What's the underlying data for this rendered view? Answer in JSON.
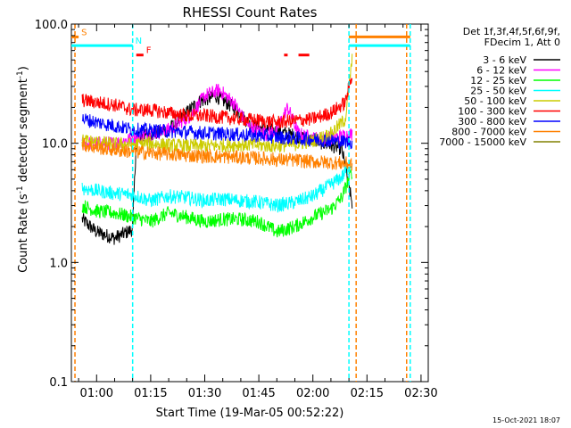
{
  "chart_data": {
    "type": "line",
    "title": "RHESSI Count Rates",
    "xlabel": "Start Time (19-Mar-05 00:52:22)",
    "ylabel_main": "Count Rate (s",
    "ylabel_sup1": "-1",
    "ylabel_mid": " detector segment",
    "ylabel_sup2": "-1",
    "ylabel_end": ")",
    "y_scale": "log",
    "ylim": [
      0.1,
      100
    ],
    "xlim": [
      "00:53",
      "02:32"
    ],
    "y_ticks": [
      {
        "value": 0.1,
        "label": "0.1"
      },
      {
        "value": 1,
        "label": "1.0"
      },
      {
        "value": 10,
        "label": "10.0"
      },
      {
        "value": 100,
        "label": "100.0"
      }
    ],
    "x_ticks": [
      {
        "value": "01:00",
        "label": "01:00"
      },
      {
        "value": "01:15",
        "label": "01:15"
      },
      {
        "value": "01:30",
        "label": "01:30"
      },
      {
        "value": "01:45",
        "label": "01:45"
      },
      {
        "value": "02:00",
        "label": "02:00"
      },
      {
        "value": "02:15",
        "label": "02:15"
      },
      {
        "value": "02:30",
        "label": "02:30"
      }
    ],
    "legend_header": [
      "Det 1f,3f,4f,5f,6f,9f,",
      "FDecim 1, Att 0"
    ],
    "legend_position": "right",
    "series": [
      {
        "name": "3 - 6 keV",
        "color": "#000000",
        "points": [
          [
            "00:56",
            2.3
          ],
          [
            "01:00",
            1.8
          ],
          [
            "01:05",
            1.6
          ],
          [
            "01:10",
            1.9
          ],
          [
            "01:11",
            11
          ],
          [
            "01:20",
            13
          ],
          [
            "01:28",
            22
          ],
          [
            "01:33",
            25
          ],
          [
            "01:38",
            20
          ],
          [
            "01:43",
            14
          ],
          [
            "01:48",
            13
          ],
          [
            "01:53",
            12
          ],
          [
            "01:58",
            11
          ],
          [
            "02:03",
            10
          ],
          [
            "02:08",
            9
          ],
          [
            "02:11",
            3
          ]
        ]
      },
      {
        "name": "6 - 12 keV",
        "color": "#ff00ff",
        "points": [
          [
            "00:56",
            10
          ],
          [
            "01:00",
            10
          ],
          [
            "01:05",
            10
          ],
          [
            "01:10",
            11
          ],
          [
            "01:15",
            12
          ],
          [
            "01:20",
            13
          ],
          [
            "01:26",
            17
          ],
          [
            "01:30",
            25
          ],
          [
            "01:34",
            28
          ],
          [
            "01:38",
            22
          ],
          [
            "01:42",
            14
          ],
          [
            "01:47",
            12
          ],
          [
            "01:50",
            13
          ],
          [
            "01:53",
            20
          ],
          [
            "01:56",
            12
          ],
          [
            "02:00",
            11
          ],
          [
            "02:05",
            11
          ],
          [
            "02:11",
            12
          ]
        ]
      },
      {
        "name": "12 - 25 keV",
        "color": "#00ff00",
        "points": [
          [
            "00:56",
            3
          ],
          [
            "01:00",
            2.7
          ],
          [
            "01:05",
            2.6
          ],
          [
            "01:10",
            2.4
          ],
          [
            "01:15",
            2.2
          ],
          [
            "01:20",
            2.6
          ],
          [
            "01:25",
            2.4
          ],
          [
            "01:30",
            2.2
          ],
          [
            "01:35",
            2.3
          ],
          [
            "01:40",
            2.3
          ],
          [
            "01:45",
            2.2
          ],
          [
            "01:50",
            1.8
          ],
          [
            "01:55",
            2.0
          ],
          [
            "02:00",
            2.4
          ],
          [
            "02:05",
            2.8
          ],
          [
            "02:08",
            3.5
          ],
          [
            "02:11",
            6
          ]
        ]
      },
      {
        "name": "25 - 50 keV",
        "color": "#00ffff",
        "points": [
          [
            "00:56",
            4.2
          ],
          [
            "01:00",
            4.0
          ],
          [
            "01:05",
            3.8
          ],
          [
            "01:10",
            3.7
          ],
          [
            "01:15",
            3.3
          ],
          [
            "01:20",
            3.6
          ],
          [
            "01:25",
            3.5
          ],
          [
            "01:30",
            3.3
          ],
          [
            "01:35",
            3.4
          ],
          [
            "01:40",
            3.3
          ],
          [
            "01:45",
            3.2
          ],
          [
            "01:50",
            3.0
          ],
          [
            "01:55",
            3.2
          ],
          [
            "02:00",
            3.6
          ],
          [
            "02:05",
            4.5
          ],
          [
            "02:08",
            5.2
          ],
          [
            "02:11",
            7
          ]
        ]
      },
      {
        "name": "50 - 100 keV",
        "color": "#cccc00",
        "points": [
          [
            "00:56",
            10.5
          ],
          [
            "01:00",
            10.2
          ],
          [
            "01:05",
            9.8
          ],
          [
            "01:10",
            9.8
          ],
          [
            "01:15",
            10
          ],
          [
            "01:20",
            9.6
          ],
          [
            "01:25",
            9.5
          ],
          [
            "01:30",
            9.5
          ],
          [
            "01:35",
            9.6
          ],
          [
            "01:40",
            9.8
          ],
          [
            "01:45",
            9.6
          ],
          [
            "01:50",
            9.5
          ],
          [
            "01:55",
            9.8
          ],
          [
            "02:00",
            10.5
          ],
          [
            "02:05",
            12
          ],
          [
            "02:09",
            16
          ],
          [
            "02:11",
            55
          ]
        ]
      },
      {
        "name": "100 - 300 keV",
        "color": "#ff0000",
        "points": [
          [
            "00:56",
            23
          ],
          [
            "01:00",
            22
          ],
          [
            "01:05",
            21
          ],
          [
            "01:10",
            19
          ],
          [
            "01:15",
            19
          ],
          [
            "01:20",
            18
          ],
          [
            "01:25",
            17
          ],
          [
            "01:30",
            17
          ],
          [
            "01:35",
            16.5
          ],
          [
            "01:40",
            16
          ],
          [
            "01:45",
            15.5
          ],
          [
            "01:50",
            15
          ],
          [
            "01:55",
            15.5
          ],
          [
            "02:00",
            16
          ],
          [
            "02:05",
            18
          ],
          [
            "02:09",
            22
          ],
          [
            "02:11",
            40
          ]
        ]
      },
      {
        "name": "300 - 800 keV",
        "color": "#0000ff",
        "points": [
          [
            "00:56",
            16
          ],
          [
            "01:00",
            15
          ],
          [
            "01:05",
            14
          ],
          [
            "01:10",
            13
          ],
          [
            "01:15",
            12.8
          ],
          [
            "01:20",
            12.6
          ],
          [
            "01:25",
            12.4
          ],
          [
            "01:30",
            12.2
          ],
          [
            "01:35",
            12
          ],
          [
            "01:40",
            11.8
          ],
          [
            "01:45",
            11.6
          ],
          [
            "01:50",
            11.3
          ],
          [
            "01:55",
            11
          ],
          [
            "02:00",
            10.8
          ],
          [
            "02:05",
            10.5
          ],
          [
            "02:11",
            10.2
          ]
        ]
      },
      {
        "name": "800 - 7000 keV",
        "color": "#ff8000",
        "points": [
          [
            "00:56",
            9.8
          ],
          [
            "01:00",
            9.2
          ],
          [
            "01:05",
            8.8
          ],
          [
            "01:10",
            8.5
          ],
          [
            "01:15",
            8.3
          ],
          [
            "01:20",
            8.1
          ],
          [
            "01:25",
            7.9
          ],
          [
            "01:30",
            7.8
          ],
          [
            "01:35",
            7.7
          ],
          [
            "01:40",
            7.6
          ],
          [
            "01:45",
            7.5
          ],
          [
            "01:50",
            7.3
          ],
          [
            "01:55",
            7.2
          ],
          [
            "02:00",
            7.0
          ],
          [
            "02:05",
            6.9
          ],
          [
            "02:11",
            6.7
          ]
        ]
      },
      {
        "name": "7000 - 15000 keV",
        "color": "#808000",
        "points": []
      }
    ],
    "vertical_markers": [
      {
        "time": "00:54",
        "color": "#ff8000"
      },
      {
        "time": "01:10",
        "color": "#00ffff"
      },
      {
        "time": "02:10",
        "color": "#00ffff"
      },
      {
        "time": "02:12",
        "color": "#ff8000"
      },
      {
        "time": "02:26",
        "color": "#ff8000"
      },
      {
        "time": "02:27",
        "color": "#00ffff"
      }
    ],
    "flag_bars": [
      {
        "label": "S",
        "color": "#ff8000",
        "value": 78,
        "start": "00:53",
        "end": "00:55"
      },
      {
        "label": "N",
        "color": "#00ffff",
        "value": 66,
        "start": "00:53",
        "end": "01:10"
      },
      {
        "label": "F",
        "color": "#ff0000",
        "value": 55,
        "start": "01:11",
        "end": "01:13"
      },
      {
        "label": "",
        "color": "#ff0000",
        "value": 55,
        "start": "01:52",
        "end": "01:53"
      },
      {
        "label": "",
        "color": "#ff0000",
        "value": 55,
        "start": "01:56",
        "end": "01:59"
      },
      {
        "label": "",
        "color": "#ff8000",
        "value": 78,
        "start": "02:10",
        "end": "02:27"
      },
      {
        "label": "",
        "color": "#00ffff",
        "value": 66,
        "start": "02:10",
        "end": "02:27"
      }
    ],
    "footer_date": "15-Oct-2021 18:07"
  }
}
